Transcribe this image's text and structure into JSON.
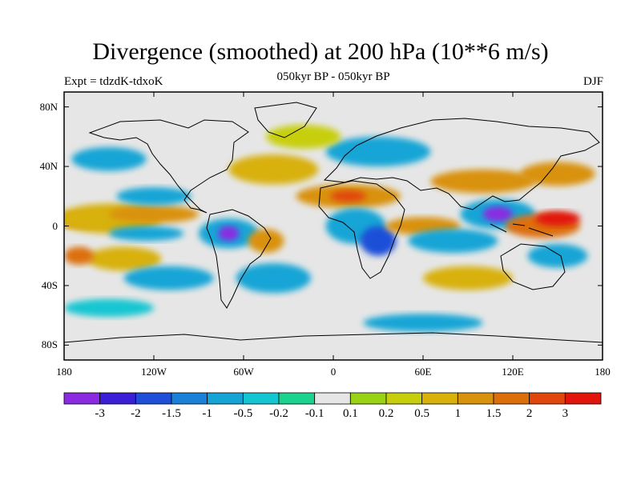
{
  "title": "Divergence (smoothed) at 200 hPa (10**6 m/s)",
  "subtitle": "050kyr BP - 050kyr BP",
  "left_label": "Expt = tdzdK-tdxoK",
  "right_label": "DJF",
  "map": {
    "lon_range": [
      -180,
      180
    ],
    "lat_range": [
      -90,
      90
    ],
    "x_ticks": [
      {
        "value": -180,
        "label": "180"
      },
      {
        "value": -120,
        "label": "120W"
      },
      {
        "value": -60,
        "label": "60W"
      },
      {
        "value": 0,
        "label": "0"
      },
      {
        "value": 60,
        "label": "60E"
      },
      {
        "value": 120,
        "label": "120E"
      },
      {
        "value": 180,
        "label": "180"
      }
    ],
    "y_ticks": [
      {
        "value": 80,
        "label": "80N"
      },
      {
        "value": 40,
        "label": "40N"
      },
      {
        "value": 0,
        "label": "0"
      },
      {
        "value": -40,
        "label": "40S"
      },
      {
        "value": -80,
        "label": "80S"
      }
    ],
    "background_color": "#e6e6e6"
  },
  "colorbar": {
    "colors": [
      "#8a2be2",
      "#3a1fd6",
      "#1f4fd8",
      "#1a80d8",
      "#14a5d6",
      "#14c6d2",
      "#1bd28f",
      "#e6e6e6",
      "#9ad316",
      "#c7cf0c",
      "#d8b10a",
      "#d9920b",
      "#dd6f0b",
      "#e1470c",
      "#e2150d"
    ],
    "labels": [
      "-3",
      "-2",
      "-1.5",
      "-1",
      "-0.5",
      "-0.2",
      "-0.1",
      "0.1",
      "0.2",
      "0.5",
      "1",
      "1.5",
      "2",
      "3"
    ]
  },
  "field_blobs": [
    {
      "lon": -165,
      "lat": 4,
      "rx": 22,
      "ry": 5,
      "level": 12
    },
    {
      "lon": -150,
      "lat": 5,
      "rx": 35,
      "ry": 10,
      "level": 10
    },
    {
      "lon": -120,
      "lat": 8,
      "rx": 30,
      "ry": 6,
      "level": 11
    },
    {
      "lon": -140,
      "lat": -22,
      "rx": 25,
      "ry": 8,
      "level": 10
    },
    {
      "lon": -170,
      "lat": -20,
      "rx": 10,
      "ry": 6,
      "level": 12
    },
    {
      "lon": -120,
      "lat": 20,
      "rx": 25,
      "ry": 6,
      "level": 4
    },
    {
      "lon": -125,
      "lat": -5,
      "rx": 25,
      "ry": 5,
      "level": 4
    },
    {
      "lon": -70,
      "lat": -5,
      "rx": 20,
      "ry": 10,
      "level": 4
    },
    {
      "lon": -70,
      "lat": -5,
      "rx": 7,
      "ry": 5,
      "level": 0
    },
    {
      "lon": -45,
      "lat": -10,
      "rx": 12,
      "ry": 8,
      "level": 11
    },
    {
      "lon": -40,
      "lat": -35,
      "rx": 25,
      "ry": 10,
      "level": 4
    },
    {
      "lon": -110,
      "lat": -35,
      "rx": 30,
      "ry": 8,
      "level": 4
    },
    {
      "lon": 10,
      "lat": 20,
      "rx": 35,
      "ry": 8,
      "level": 11
    },
    {
      "lon": 10,
      "lat": 20,
      "rx": 12,
      "ry": 4,
      "level": 13
    },
    {
      "lon": 15,
      "lat": 0,
      "rx": 20,
      "ry": 12,
      "level": 4
    },
    {
      "lon": 30,
      "lat": -10,
      "rx": 12,
      "ry": 10,
      "level": 2
    },
    {
      "lon": 60,
      "lat": 0,
      "rx": 25,
      "ry": 6,
      "level": 11
    },
    {
      "lon": 80,
      "lat": -10,
      "rx": 30,
      "ry": 8,
      "level": 4
    },
    {
      "lon": 110,
      "lat": 8,
      "rx": 25,
      "ry": 10,
      "level": 4
    },
    {
      "lon": 110,
      "lat": 8,
      "rx": 10,
      "ry": 5,
      "level": 0
    },
    {
      "lon": 140,
      "lat": 0,
      "rx": 25,
      "ry": 8,
      "level": 12
    },
    {
      "lon": 150,
      "lat": 5,
      "rx": 15,
      "ry": 5,
      "level": 14
    },
    {
      "lon": 100,
      "lat": 30,
      "rx": 35,
      "ry": 8,
      "level": 11
    },
    {
      "lon": 150,
      "lat": 35,
      "rx": 25,
      "ry": 8,
      "level": 11
    },
    {
      "lon": 150,
      "lat": -20,
      "rx": 20,
      "ry": 8,
      "level": 4
    },
    {
      "lon": -40,
      "lat": 38,
      "rx": 30,
      "ry": 10,
      "level": 10
    },
    {
      "lon": -150,
      "lat": 45,
      "rx": 25,
      "ry": 8,
      "level": 4
    },
    {
      "lon": 30,
      "lat": 50,
      "rx": 35,
      "ry": 10,
      "level": 4
    },
    {
      "lon": -20,
      "lat": 60,
      "rx": 25,
      "ry": 8,
      "level": 9
    },
    {
      "lon": 90,
      "lat": -35,
      "rx": 30,
      "ry": 8,
      "level": 10
    },
    {
      "lon": -150,
      "lat": -55,
      "rx": 30,
      "ry": 6,
      "level": 5
    },
    {
      "lon": 60,
      "lat": -65,
      "rx": 40,
      "ry": 6,
      "level": 4
    }
  ]
}
